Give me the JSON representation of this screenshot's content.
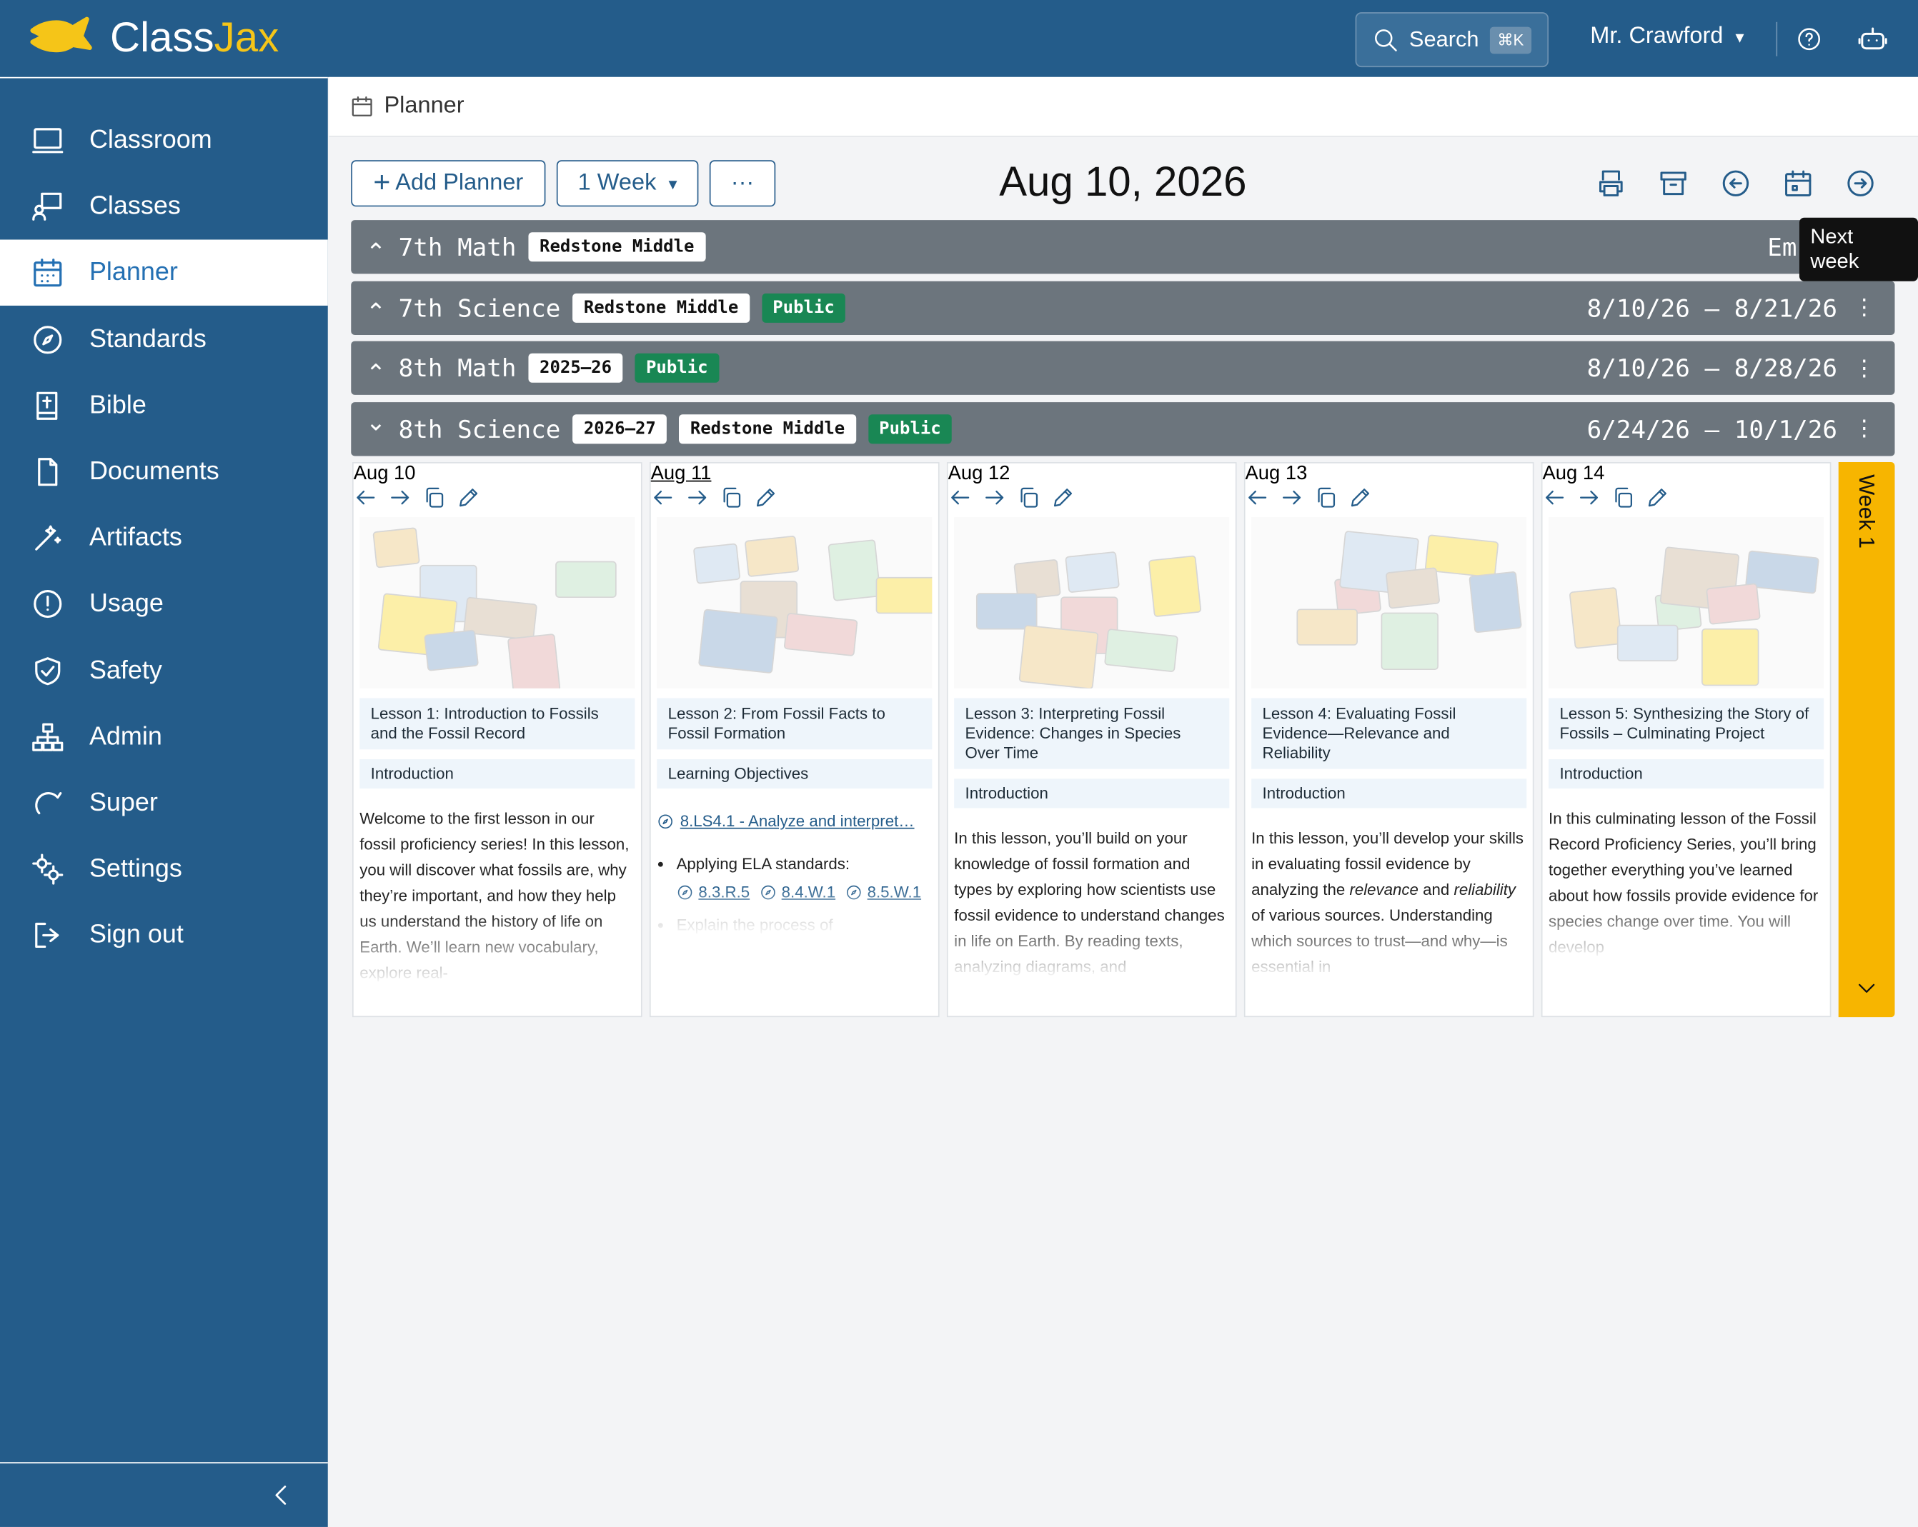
{
  "header": {
    "logo_part1": "Class",
    "logo_part2": "Jax",
    "search": "Search",
    "shortcut": "⌘K",
    "user": "Mr. Crawford"
  },
  "sidebar": {
    "items": [
      "Classroom",
      "Classes",
      "Planner",
      "Standards",
      "Bible",
      "Documents",
      "Artifacts",
      "Usage",
      "Safety",
      "Admin",
      "Super",
      "Settings",
      "Sign out"
    ],
    "active": 2
  },
  "breadcrumb": "Planner",
  "toolbar": {
    "add": "Add Planner",
    "range": "1 Week",
    "more": "···",
    "date": "Aug 10, 2026",
    "tooltip": "Next week"
  },
  "planners": [
    {
      "name": "7th Math",
      "tags": [
        "Redstone Middle"
      ],
      "public": null,
      "dates": "Em",
      "expanded": false
    },
    {
      "name": "7th Science",
      "tags": [
        "Redstone Middle"
      ],
      "public": "Public",
      "dates": "8/10/26 – 8/21/26",
      "expanded": false
    },
    {
      "name": "8th Math",
      "tags": [
        "2025–26"
      ],
      "public": "Public",
      "dates": "8/10/26 – 8/28/26",
      "expanded": false
    },
    {
      "name": "8th Science",
      "tags": [
        "2026–27",
        "Redstone Middle"
      ],
      "public": "Public",
      "dates": "6/24/26 – 10/1/26",
      "expanded": true
    }
  ],
  "week_tab": "Week 1",
  "days": [
    {
      "date": "Aug 10",
      "lesson": "Lesson 1: Introduction to Fossils and the Fossil Record",
      "section": "Introduction",
      "body": [
        {
          "text": "Welcome to the first lesson in our fossil proficiency series! In this lesson, you will discover what fossils are, why they’re important, and how they help us understand the history of life on Earth. We’ll learn new vocabulary, explore real-"
        }
      ]
    },
    {
      "date": "Aug 11",
      "lesson": "Lesson 2: From Fossil Facts to Fossil Formation",
      "section": "Learning Objectives",
      "objective": "8.LS4.1 - Analyze and interpret…",
      "bullets": [
        {
          "text": "Applying ELA standards:",
          "links": [
            "8.3.R.5",
            "8.4.W.1",
            "8.5.W.1"
          ]
        },
        {
          "text": "Explain the process of",
          "links": []
        }
      ]
    },
    {
      "date": "Aug 12",
      "lesson": "Lesson 3: Interpreting Fossil Evidence: Changes in Species Over Time",
      "section": "Introduction",
      "body": [
        {
          "text": "In this lesson, you’ll build on your knowledge of fossil formation and types by exploring how scientists use fossil evidence to understand changes in life on Earth. By reading texts, analyzing diagrams, and"
        }
      ]
    },
    {
      "date": "Aug 13",
      "lesson": "Lesson 4: Evaluating Fossil Evidence—Relevance and Reliability",
      "section": "Introduction",
      "body": [
        {
          "text": "In this lesson, you’ll develop your skills in evaluating fossil evidence by analyzing the "
        },
        {
          "text": "relevance",
          "italic": true
        },
        {
          "text": " and "
        },
        {
          "text": "reliability",
          "italic": true
        },
        {
          "text": " of various sources. Understanding which sources to trust—and why—is essential in"
        }
      ]
    },
    {
      "date": "Aug 14",
      "lesson": "Lesson 5: Synthesizing the Story of Fossils – Culminating Project",
      "section": "Introduction",
      "body": [
        {
          "text": "In this culminating lesson of the Fossil Record Proficiency Series, you’ll bring together everything you’ve learned about how fossils provide evidence for species change over time. You will develop"
        }
      ]
    }
  ]
}
